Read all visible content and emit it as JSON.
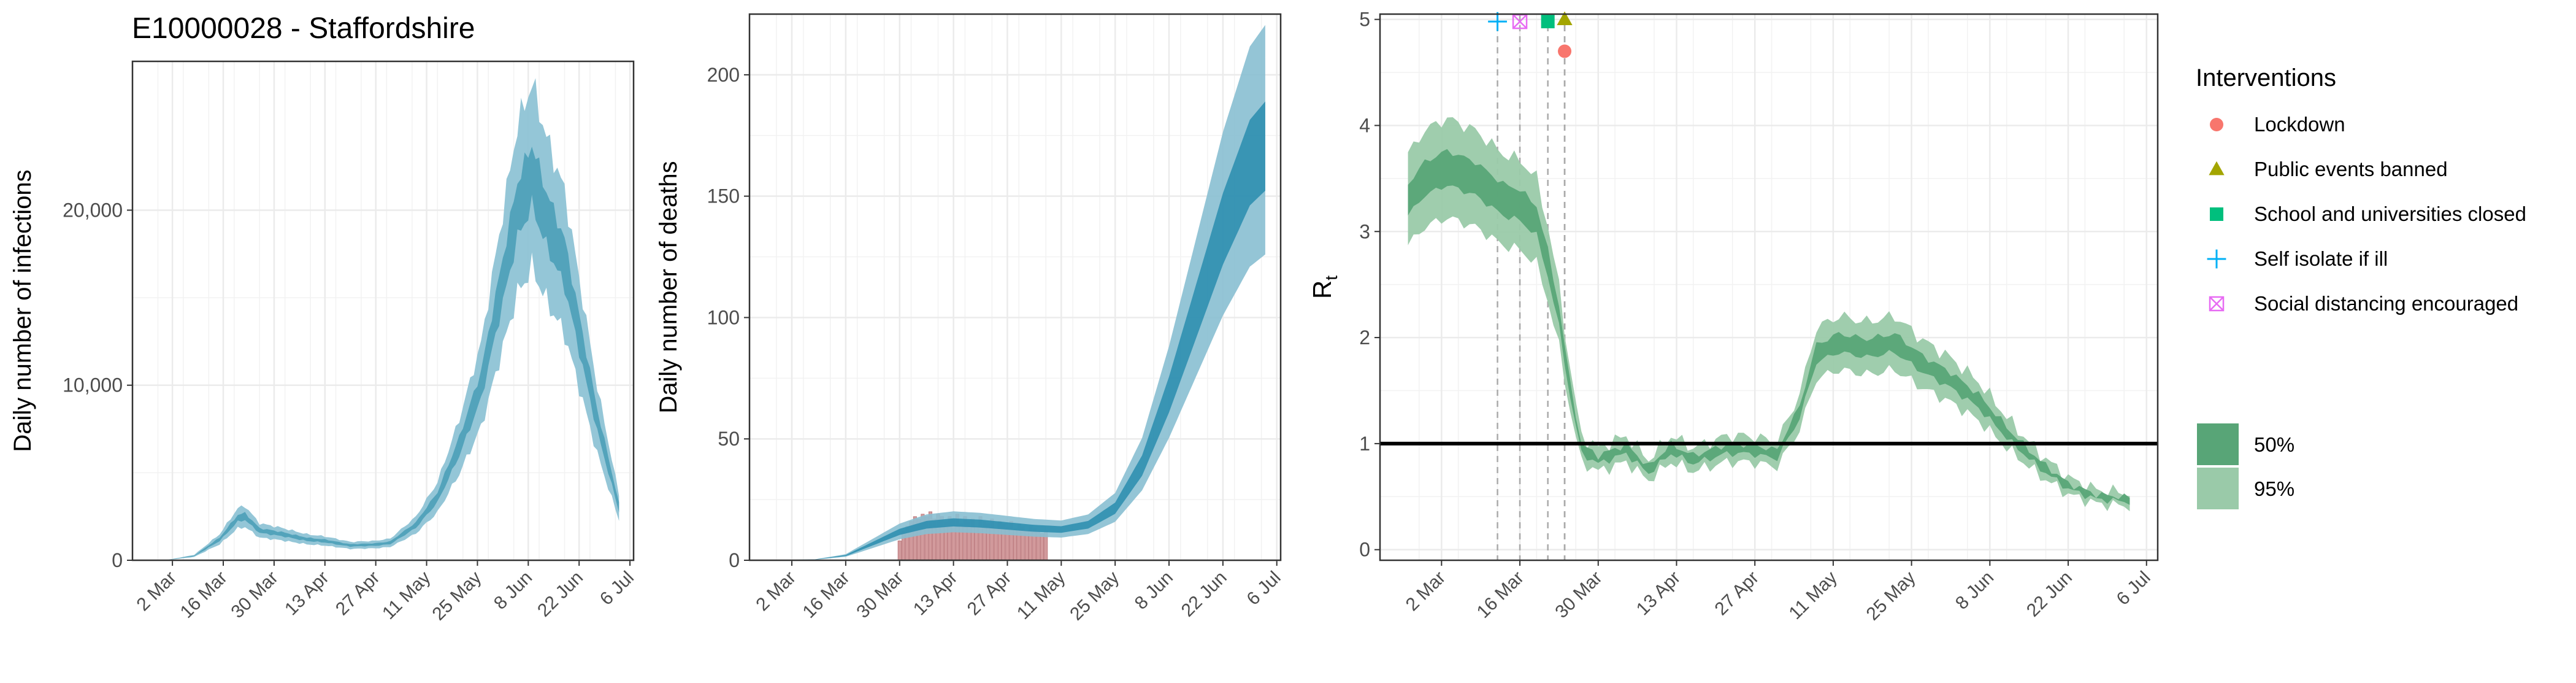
{
  "page_title": "E10000028 - Staffordshire",
  "colors": {
    "infection_band": "#4fa1b9",
    "infection_band_light": "#8ec3d5",
    "deaths_band": "#2f8fb0",
    "deaths_band_light": "#88bfd2",
    "deaths_bars": "#d29a9c",
    "rt_band": "#58a577",
    "rt_band_light": "#9acaa9",
    "lockdown": "#f8766d",
    "public_events": "#a3a500",
    "schools": "#00bf7d",
    "self_isolate": "#00b0f6",
    "social_distancing": "#e76bf3",
    "grid": "#ebebeb",
    "axis": "#333333"
  },
  "chart_data": [
    {
      "type": "area",
      "id": "infections",
      "title": "E10000028 - Staffordshire",
      "xlabel": "",
      "ylabel": "Daily number of infections",
      "x_start": "2020-02-22",
      "x_end": "2020-07-03",
      "xlim": [
        "2020-02-20",
        "2020-07-07"
      ],
      "ylim": [
        0,
        28500
      ],
      "yticks": [
        0,
        10000,
        20000
      ],
      "ytick_labels": [
        "0",
        "10,000",
        "20,000"
      ],
      "xticks": [
        "2020-03-02",
        "2020-03-16",
        "2020-03-30",
        "2020-04-13",
        "2020-04-27",
        "2020-05-11",
        "2020-05-25",
        "2020-06-08",
        "2020-06-22",
        "2020-07-06"
      ],
      "xtick_labels": [
        "2 Mar",
        "16 Mar",
        "30 Mar",
        "13 Apr",
        "27 Apr",
        "11 May",
        "25 May",
        "8 Jun",
        "22 Jun",
        "6 Jul"
      ],
      "median_knots": [
        [
          "2020-02-22",
          0
        ],
        [
          "2020-03-01",
          30
        ],
        [
          "2020-03-08",
          250
        ],
        [
          "2020-03-15",
          1200
        ],
        [
          "2020-03-20",
          2400
        ],
        [
          "2020-03-22",
          2500
        ],
        [
          "2020-03-26",
          1700
        ],
        [
          "2020-04-01",
          1500
        ],
        [
          "2020-04-08",
          1200
        ],
        [
          "2020-04-13",
          1100
        ],
        [
          "2020-04-20",
          850
        ],
        [
          "2020-04-27",
          900
        ],
        [
          "2020-05-01",
          1000
        ],
        [
          "2020-05-08",
          2000
        ],
        [
          "2020-05-14",
          3600
        ],
        [
          "2020-05-20",
          6500
        ],
        [
          "2020-05-26",
          10000
        ],
        [
          "2020-06-01",
          16000
        ],
        [
          "2020-06-05",
          20000
        ],
        [
          "2020-06-09",
          22000
        ],
        [
          "2020-06-13",
          19500
        ],
        [
          "2020-06-18",
          17000
        ],
        [
          "2020-06-22",
          13000
        ],
        [
          "2020-06-27",
          8000
        ],
        [
          "2020-07-03",
          3000
        ]
      ],
      "band50_frac": 0.08,
      "band95_frac": 0.24
    },
    {
      "type": "area",
      "id": "deaths",
      "xlabel": "",
      "ylabel": "Daily number of deaths",
      "x_start": "2020-02-22",
      "x_end": "2020-07-03",
      "xlim": [
        "2020-02-20",
        "2020-07-07"
      ],
      "ylim": [
        0,
        225
      ],
      "yticks": [
        0,
        50,
        100,
        150,
        200
      ],
      "ytick_labels": [
        "0",
        "50",
        "100",
        "150",
        "200"
      ],
      "xticks": [
        "2020-03-02",
        "2020-03-16",
        "2020-03-30",
        "2020-04-13",
        "2020-04-27",
        "2020-05-11",
        "2020-05-25",
        "2020-06-08",
        "2020-06-22",
        "2020-07-06"
      ],
      "xtick_labels": [
        "2 Mar",
        "16 Mar",
        "30 Mar",
        "13 Apr",
        "27 Apr",
        "11 May",
        "25 May",
        "8 Jun",
        "22 Jun",
        "6 Jul"
      ],
      "median_knots": [
        [
          "2020-02-22",
          0
        ],
        [
          "2020-03-08",
          0.3
        ],
        [
          "2020-03-16",
          2
        ],
        [
          "2020-03-23",
          7
        ],
        [
          "2020-03-30",
          12
        ],
        [
          "2020-04-06",
          15
        ],
        [
          "2020-04-13",
          16
        ],
        [
          "2020-04-20",
          15.5
        ],
        [
          "2020-04-27",
          14.5
        ],
        [
          "2020-05-04",
          13.5
        ],
        [
          "2020-05-11",
          13
        ],
        [
          "2020-05-18",
          15
        ],
        [
          "2020-05-25",
          22
        ],
        [
          "2020-06-01",
          40
        ],
        [
          "2020-06-08",
          70
        ],
        [
          "2020-06-15",
          105
        ],
        [
          "2020-06-22",
          140
        ],
        [
          "2020-06-29",
          168
        ],
        [
          "2020-07-03",
          175
        ]
      ],
      "band50_lo": 0.87,
      "band50_hi": 1.08,
      "band95_lo": 0.72,
      "band95_hi": 1.26,
      "observed_bars": {
        "start": "2020-03-30",
        "values": [
          8,
          12,
          14,
          16,
          18,
          17,
          19,
          18,
          20,
          17,
          19,
          18,
          16,
          18,
          17,
          19,
          15,
          18,
          16,
          17,
          14,
          18,
          16,
          15,
          17,
          13,
          16,
          15,
          14,
          16,
          13,
          15,
          14,
          12,
          14,
          13,
          12,
          11,
          12
        ]
      }
    },
    {
      "type": "line",
      "id": "rt",
      "xlabel": "",
      "ylabel": "R",
      "ylabel_subscript": "t",
      "x_start": "2020-02-25",
      "x_end": "2020-07-03",
      "xlim": [
        "2020-02-20",
        "2020-07-08"
      ],
      "ylim": [
        -0.1,
        5.05
      ],
      "yticks": [
        0,
        1,
        2,
        3,
        4,
        5
      ],
      "ytick_labels": [
        "0",
        "1",
        "2",
        "3",
        "4",
        "5"
      ],
      "xticks": [
        "2020-03-02",
        "2020-03-16",
        "2020-03-30",
        "2020-04-13",
        "2020-04-27",
        "2020-05-11",
        "2020-05-25",
        "2020-06-08",
        "2020-06-22",
        "2020-07-06"
      ],
      "xtick_labels": [
        "2 Mar",
        "16 Mar",
        "30 Mar",
        "13 Apr",
        "27 Apr",
        "11 May",
        "25 May",
        "8 Jun",
        "22 Jun",
        "6 Jul"
      ],
      "reference_line": 1,
      "median_knots": [
        [
          "2020-02-25",
          3.3
        ],
        [
          "2020-02-28",
          3.5
        ],
        [
          "2020-03-03",
          3.6
        ],
        [
          "2020-03-08",
          3.5
        ],
        [
          "2020-03-13",
          3.3
        ],
        [
          "2020-03-16",
          3.25
        ],
        [
          "2020-03-19",
          3.1
        ],
        [
          "2020-03-21",
          2.7
        ],
        [
          "2020-03-23",
          2.2
        ],
        [
          "2020-03-25",
          1.5
        ],
        [
          "2020-03-27",
          0.95
        ],
        [
          "2020-03-30",
          0.85
        ],
        [
          "2020-04-04",
          0.95
        ],
        [
          "2020-04-08",
          0.75
        ],
        [
          "2020-04-12",
          0.95
        ],
        [
          "2020-04-16",
          0.85
        ],
        [
          "2020-04-22",
          0.95
        ],
        [
          "2020-04-26",
          0.95
        ],
        [
          "2020-05-01",
          0.9
        ],
        [
          "2020-05-05",
          1.3
        ],
        [
          "2020-05-08",
          1.85
        ],
        [
          "2020-05-12",
          1.95
        ],
        [
          "2020-05-17",
          1.9
        ],
        [
          "2020-05-22",
          1.95
        ],
        [
          "2020-05-27",
          1.75
        ],
        [
          "2020-06-01",
          1.6
        ],
        [
          "2020-06-06",
          1.4
        ],
        [
          "2020-06-12",
          1.05
        ],
        [
          "2020-06-17",
          0.8
        ],
        [
          "2020-06-22",
          0.6
        ],
        [
          "2020-06-27",
          0.5
        ],
        [
          "2020-07-03",
          0.47
        ]
      ],
      "band50_frac": 0.045,
      "band95_frac": 0.13,
      "interventions": [
        {
          "name": "Self isolate if ill",
          "date": "2020-03-12",
          "marker": "plus",
          "color_key": "self_isolate",
          "y": 4.98
        },
        {
          "name": "Social distancing encouraged",
          "date": "2020-03-16",
          "marker": "boxx",
          "color_key": "social_distancing",
          "y": 4.98
        },
        {
          "name": "School and universities closed",
          "date": "2020-03-21",
          "marker": "square",
          "color_key": "schools",
          "y": 4.98
        },
        {
          "name": "Public events banned",
          "date": "2020-03-24",
          "marker": "triangle",
          "color_key": "public_events",
          "y": 5.0
        },
        {
          "name": "Lockdown",
          "date": "2020-03-24",
          "marker": "circle",
          "color_key": "lockdown",
          "y": 4.7
        }
      ]
    }
  ],
  "legend": {
    "title": "Interventions",
    "items": [
      {
        "label": "Lockdown",
        "marker": "circle",
        "color_key": "lockdown"
      },
      {
        "label": "Public events banned",
        "marker": "triangle",
        "color_key": "public_events"
      },
      {
        "label": "School and universities closed",
        "marker": "square",
        "color_key": "schools"
      },
      {
        "label": "Self isolate if ill",
        "marker": "plus",
        "color_key": "self_isolate"
      },
      {
        "label": "Social distancing encouraged",
        "marker": "boxx",
        "color_key": "social_distancing"
      }
    ],
    "band_items": [
      {
        "label": "50%",
        "color_key": "rt_band"
      },
      {
        "label": "95%",
        "color_key": "rt_band_light"
      }
    ]
  }
}
